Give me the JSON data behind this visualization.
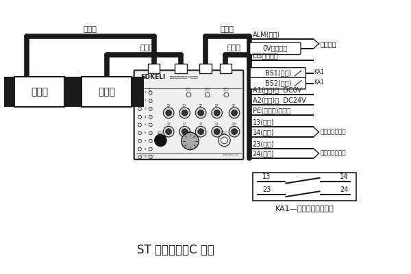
{
  "title": "ST 型控制器（C 型）",
  "bg_color": "#ffffff",
  "line_color": "#1a1a1a",
  "top_labels": [
    "传输线",
    "传输线",
    "信号线",
    "电源线"
  ],
  "device_labels": [
    "发射器",
    "接收器"
  ],
  "ka1_label": "KA1—折弯机慢下继电器",
  "relay_contacts": [
    [
      "13",
      "14"
    ],
    [
      "23",
      "24"
    ]
  ],
  "right_labels": [
    "ALM(黑色)",
    "0V（绿色）",
    "CG（红色）",
    "BS1(蓝色)",
    "BS2(棕色)",
    "A1(白色)：  DC0V",
    "A2(红色)：  DC24V",
    "PE(黄绿色)：接地",
    "13(蓝色)",
    "14(蓝色)",
    "23(棕色)",
    "24(棕色)"
  ]
}
